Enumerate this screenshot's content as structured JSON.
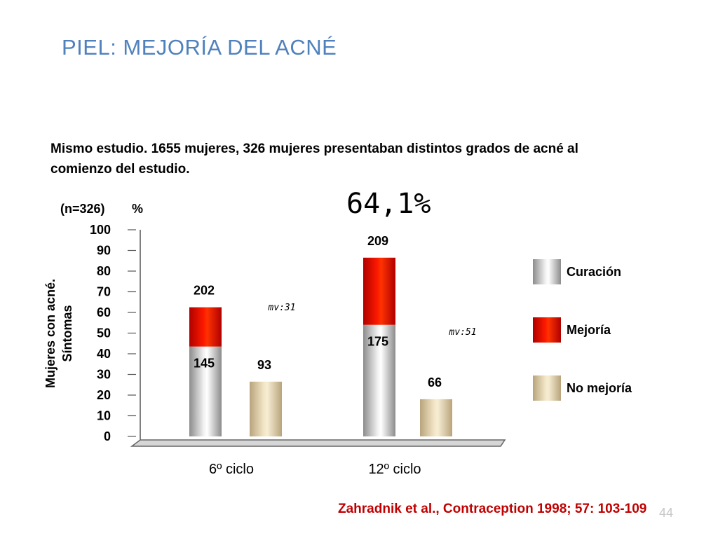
{
  "title": "PIEL: MEJORÍA DEL ACNÉ",
  "intro": "Mismo estudio. 1655 mujeres, 326 mujeres presentaban distintos grados de acné al comienzo del estudio.",
  "highlight": "64,1%",
  "n_label": "(n=326)",
  "unit_label": "%",
  "ylabel_line1": "Mujeres con acné.",
  "ylabel_line2": "Síntomas",
  "citation": "Zahradnik et al., Contraception 1998; 57: 103-109",
  "page_number": "44",
  "colors": {
    "title": "#4f81bd",
    "citation": "#c00000",
    "curacion": "#d9d9d9",
    "mejoria": "#ff2200",
    "no_mejoria": "#efe2c0"
  },
  "chart_data": {
    "type": "bar",
    "stacked": true,
    "title": "",
    "xlabel": "",
    "ylabel": "Mujeres con acné. Síntomas",
    "ylim": [
      0,
      100
    ],
    "yticks": [
      "0",
      "10",
      "20",
      "30",
      "40",
      "50",
      "60",
      "70",
      "80",
      "90",
      "100"
    ],
    "categories": [
      "6º ciclo",
      "12º ciclo"
    ],
    "series": [
      {
        "name": "Curación",
        "values": [
          43.5,
          54
        ],
        "labels": [
          "145",
          "175"
        ]
      },
      {
        "name": "Mejoría",
        "values": [
          19,
          32.5
        ],
        "totals_labels": [
          "202",
          "209"
        ]
      },
      {
        "name": "No mejoría",
        "values": [
          26.5,
          18
        ],
        "labels": [
          "93",
          "66"
        ]
      }
    ],
    "annotations": [
      "mv:31",
      "mv:51"
    ],
    "legend": {
      "position": "right",
      "items": [
        "Curación",
        "Mejoría",
        "No mejoría"
      ]
    }
  }
}
